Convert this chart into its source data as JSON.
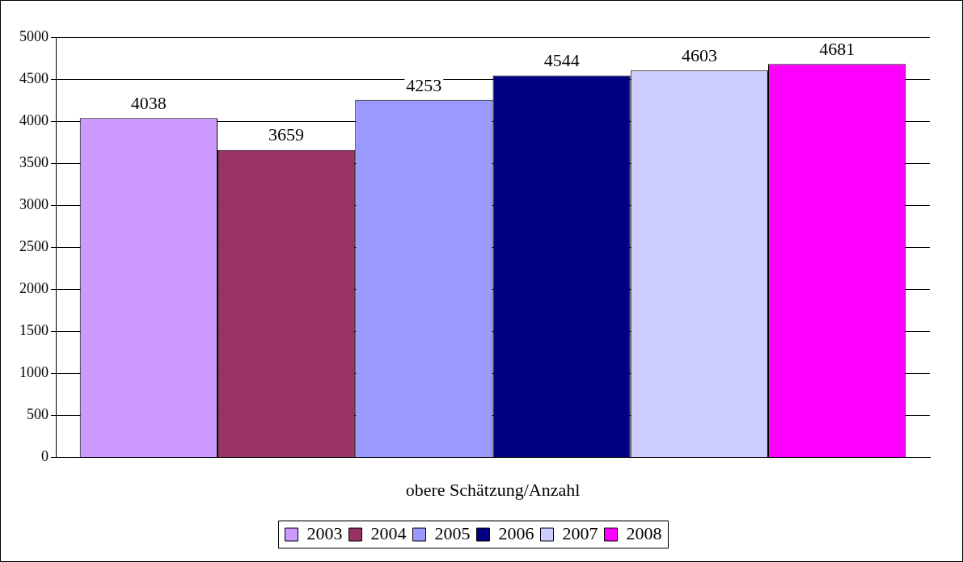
{
  "chart_data": {
    "type": "bar",
    "categories": [
      "obere Schätzung/Anzahl"
    ],
    "series": [
      {
        "name": "2003",
        "color": "#cc99ff",
        "values": [
          4038
        ]
      },
      {
        "name": "2004",
        "color": "#993366",
        "values": [
          3659
        ]
      },
      {
        "name": "2005",
        "color": "#9999ff",
        "values": [
          4253
        ]
      },
      {
        "name": "2006",
        "color": "#000080",
        "values": [
          4544
        ]
      },
      {
        "name": "2007",
        "color": "#ccccff",
        "values": [
          4603
        ]
      },
      {
        "name": "2008",
        "color": "#ff00ff",
        "values": [
          4681
        ]
      }
    ],
    "ylim": [
      0,
      5000
    ],
    "yticks": [
      0,
      500,
      1000,
      1500,
      2000,
      2500,
      3000,
      3500,
      4000,
      4500,
      5000
    ],
    "grid": "y",
    "legend": "bottom",
    "data_labels": true
  }
}
